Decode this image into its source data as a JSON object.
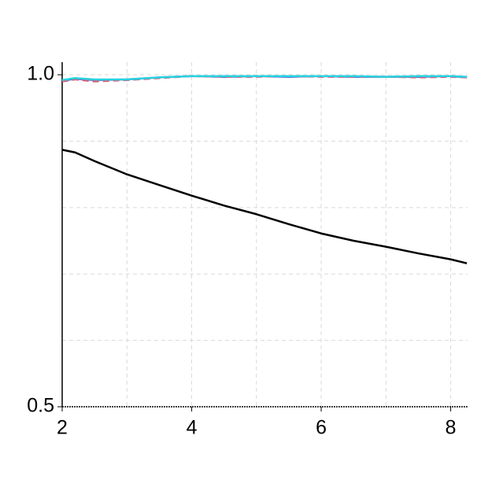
{
  "chart_data": {
    "type": "line",
    "x": [
      2,
      2.2,
      2.5,
      3,
      3.5,
      4,
      4.5,
      5,
      5.5,
      6,
      6.5,
      7,
      7.5,
      8,
      8.25
    ],
    "series": [
      {
        "color": "#000000",
        "dash": "none",
        "values": [
          0.887,
          0.883,
          0.87,
          0.85,
          0.834,
          0.818,
          0.803,
          0.79,
          0.775,
          0.761,
          0.75,
          0.741,
          0.731,
          0.722,
          0.716
        ]
      },
      {
        "color": "#3a5fd9",
        "dash": "none",
        "values": [
          0.991,
          0.994,
          0.992,
          0.993,
          0.996,
          0.998,
          0.997,
          0.998,
          0.997,
          0.998,
          0.997,
          0.997,
          0.997,
          0.998,
          0.996
        ]
      },
      {
        "color": "#d0607a",
        "dash": "8 5",
        "values": [
          0.99,
          0.993,
          0.99,
          0.992,
          0.995,
          0.998,
          0.997,
          0.997,
          0.998,
          0.997,
          0.997,
          0.997,
          0.996,
          0.997,
          0.996
        ]
      },
      {
        "color": "#29d3e0",
        "dash": "none",
        "values": [
          0.992,
          0.995,
          0.993,
          0.993,
          0.996,
          0.998,
          0.998,
          0.998,
          0.998,
          0.998,
          0.998,
          0.997,
          0.998,
          0.998,
          0.997
        ]
      }
    ],
    "xlim": [
      2,
      8.26
    ],
    "ylim": [
      0.5,
      1.019
    ],
    "xticks": [
      2,
      4,
      6,
      8
    ],
    "yticks": [
      0.5,
      {
        "value": 1,
        "label": "1.0"
      }
    ],
    "xgrid": [
      3,
      4,
      5,
      6,
      7,
      8
    ],
    "ygrid": [
      0.6,
      0.7,
      0.8,
      0.9,
      1
    ],
    "grid": true
  }
}
